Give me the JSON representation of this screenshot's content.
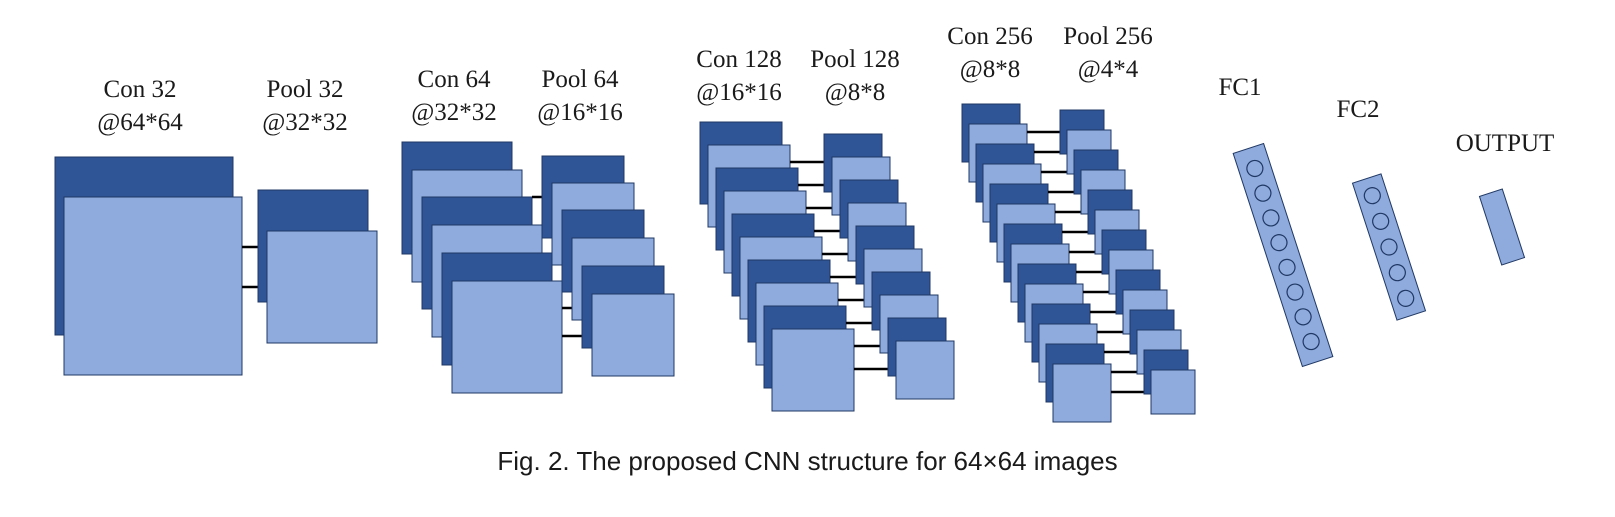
{
  "diagram": {
    "colors": {
      "dark": "#2f5597",
      "light": "#8faadc",
      "edge": "#1f3864",
      "connector": "#000000"
    },
    "layers": [
      {
        "name": "Con 32",
        "size": "@64*64"
      },
      {
        "name": "Pool 32",
        "size": "@32*32"
      },
      {
        "name": "Con 64",
        "size": "@32*32"
      },
      {
        "name": "Pool 64",
        "size": "@16*16"
      },
      {
        "name": "Con 128",
        "size": "@16*16"
      },
      {
        "name": "Pool 128",
        "size": "@8*8"
      },
      {
        "name": "Con 256",
        "size": "@8*8"
      },
      {
        "name": "Pool 256",
        "size": "@4*4"
      },
      {
        "name": "FC1",
        "size": ""
      },
      {
        "name": "FC2",
        "size": ""
      },
      {
        "name": "OUTPUT",
        "size": ""
      }
    ],
    "fc1_nodes": 8,
    "fc2_nodes": 5
  },
  "caption": "Fig.  2.  The proposed CNN structure for 64×64 images"
}
